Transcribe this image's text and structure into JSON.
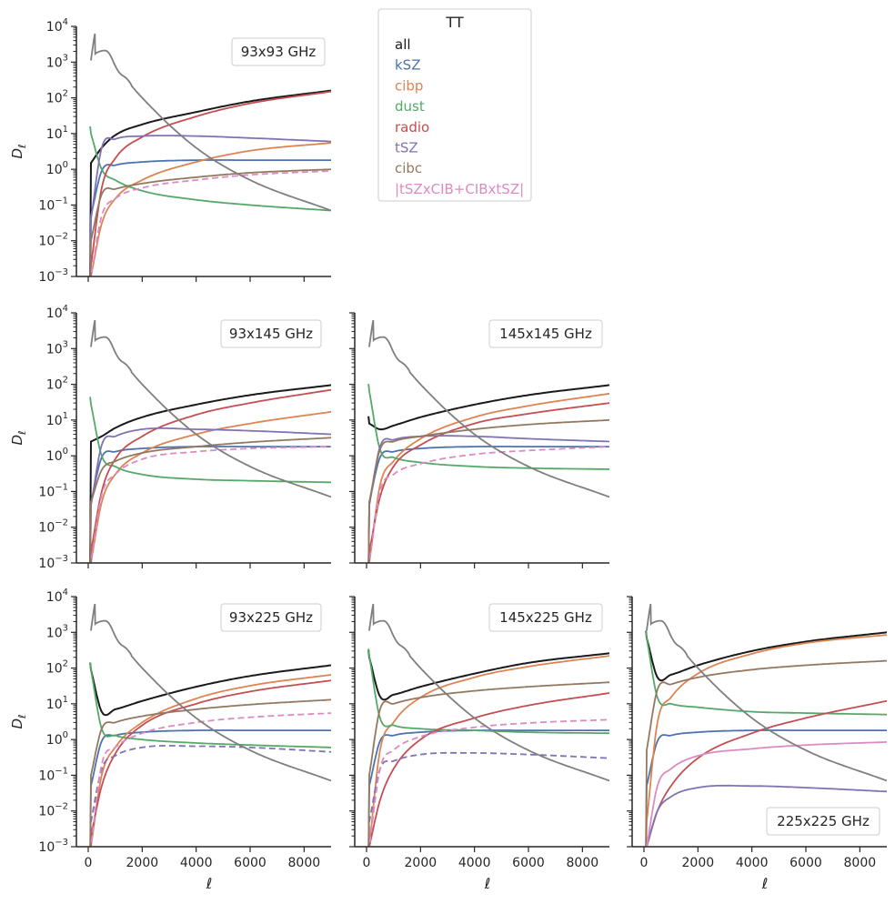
{
  "figure_title": "TT",
  "legend": [
    {
      "label": "all",
      "color": "#1a1a1a"
    },
    {
      "label": "kSZ",
      "color": "#4c72b0"
    },
    {
      "label": "cibp",
      "color": "#dd8452"
    },
    {
      "label": "dust",
      "color": "#55a868"
    },
    {
      "label": "radio",
      "color": "#c44e52"
    },
    {
      "label": "tSZ",
      "color": "#8172b3"
    },
    {
      "label": "cibc",
      "color": "#937860"
    },
    {
      "label": "|tSZxCIB+CIBxtSZ|",
      "color": "#da8bc3"
    }
  ],
  "cmb_color": "#7f7f7f",
  "chart_data": [
    {
      "type": "line",
      "title": "93x93 GHz",
      "ylabel": "D_ℓ",
      "xlabel": "",
      "xlim": [
        0,
        9000
      ],
      "ylim": [
        0.001,
        10000
      ],
      "yscale": "log",
      "legend_placement": "top-right",
      "x": [
        100,
        500,
        1000,
        2000,
        4000,
        6000,
        9000
      ],
      "series": [
        {
          "name": "all",
          "values": [
            1.5,
            4,
            9,
            18,
            40,
            80,
            160
          ]
        },
        {
          "name": "kSZ",
          "values": [
            0.05,
            0.9,
            1.3,
            1.6,
            1.8,
            1.8,
            1.8
          ]
        },
        {
          "name": "cibp",
          "values": [
            0.001,
            0.03,
            0.15,
            0.5,
            1.6,
            3.3,
            5.5
          ]
        },
        {
          "name": "dust",
          "values": [
            10,
            1.0,
            0.5,
            0.25,
            0.14,
            0.1,
            0.07
          ]
        },
        {
          "name": "radio",
          "values": [
            0.002,
            0.3,
            2,
            8,
            30,
            70,
            150
          ]
        },
        {
          "name": "tSZ",
          "values": [
            0.04,
            4,
            7,
            8.5,
            8.5,
            7.5,
            6
          ]
        },
        {
          "name": "cibc",
          "values": [
            0.01,
            0.2,
            0.28,
            0.4,
            0.6,
            0.8,
            1.0
          ]
        },
        {
          "name": "|tSZxCIB+CIBxtSZ|",
          "values": [
            0.001,
            0.05,
            0.15,
            0.3,
            0.5,
            0.7,
            0.9
          ],
          "dashed": true
        },
        {
          "name": "CMB",
          "values": [
            900,
            2500,
            800,
            100,
            4,
            0.5,
            0.07
          ]
        }
      ]
    },
    {
      "type": "line",
      "title": "93x145 GHz",
      "ylabel": "D_ℓ",
      "xlabel": "",
      "xlim": [
        0,
        9000
      ],
      "ylim": [
        0.001,
        10000
      ],
      "yscale": "log",
      "legend_placement": "top-right",
      "x": [
        100,
        500,
        1000,
        2000,
        4000,
        6000,
        9000
      ],
      "series": [
        {
          "name": "all",
          "values": [
            2.5,
            3.5,
            6,
            12,
            27,
            50,
            95
          ]
        },
        {
          "name": "kSZ",
          "values": [
            0.05,
            0.9,
            1.3,
            1.6,
            1.8,
            1.8,
            1.8
          ]
        },
        {
          "name": "cibp",
          "values": [
            0.001,
            0.05,
            0.3,
            1.2,
            4,
            8,
            17
          ]
        },
        {
          "name": "dust",
          "values": [
            28,
            1.0,
            0.5,
            0.3,
            0.22,
            0.2,
            0.18
          ]
        },
        {
          "name": "radio",
          "values": [
            0.002,
            0.1,
            0.8,
            3.5,
            14,
            30,
            70
          ]
        },
        {
          "name": "tSZ",
          "values": [
            0.04,
            2,
            3.5,
            5.5,
            5.5,
            5,
            4
          ]
        },
        {
          "name": "cibc",
          "values": [
            0.05,
            0.4,
            0.7,
            1.2,
            1.8,
            2.4,
            3.2
          ]
        },
        {
          "name": "|tSZxCIB+CIBxtSZ|",
          "values": [
            0.001,
            0.08,
            0.3,
            0.8,
            1.3,
            1.6,
            1.8
          ],
          "dashed": true
        },
        {
          "name": "CMB",
          "values": [
            900,
            2500,
            800,
            100,
            4,
            0.5,
            0.07
          ]
        }
      ]
    },
    {
      "type": "line",
      "title": "145x145 GHz",
      "ylabel": "",
      "xlabel": "",
      "xlim": [
        0,
        9000
      ],
      "ylim": [
        0.001,
        10000
      ],
      "yscale": "log",
      "legend_placement": "top-right",
      "x": [
        100,
        500,
        1000,
        2000,
        4000,
        6000,
        9000
      ],
      "series": [
        {
          "name": "all",
          "values": [
            8,
            5.5,
            7,
            12,
            27,
            50,
            95
          ]
        },
        {
          "name": "kSZ",
          "values": [
            0.05,
            0.9,
            1.3,
            1.6,
            1.8,
            1.8,
            1.8
          ]
        },
        {
          "name": "cibp",
          "values": [
            0.001,
            0.15,
            0.7,
            3,
            12,
            25,
            55
          ]
        },
        {
          "name": "dust",
          "values": [
            65,
            1.5,
            0.9,
            0.65,
            0.5,
            0.45,
            0.42
          ]
        },
        {
          "name": "radio",
          "values": [
            0.002,
            0.07,
            0.5,
            2,
            8,
            15,
            30
          ]
        },
        {
          "name": "tSZ",
          "values": [
            0.04,
            1.8,
            2.8,
            3.5,
            3.5,
            3,
            2.5
          ]
        },
        {
          "name": "cibc",
          "values": [
            0.05,
            1.5,
            2.5,
            3.5,
            5.5,
            7.5,
            10
          ]
        },
        {
          "name": "|tSZxCIB+CIBxtSZ|",
          "values": [
            0.001,
            0.1,
            0.3,
            0.6,
            1.1,
            1.4,
            1.8
          ],
          "dashed": true
        },
        {
          "name": "CMB",
          "values": [
            900,
            2500,
            800,
            100,
            4,
            0.5,
            0.07
          ]
        }
      ]
    },
    {
      "type": "line",
      "title": "93x225 GHz",
      "ylabel": "D_ℓ",
      "xlabel": "ℓ",
      "xlim": [
        0,
        9000
      ],
      "ylim": [
        0.001,
        10000
      ],
      "yscale": "log",
      "legend_placement": "top-right",
      "x": [
        100,
        500,
        1000,
        2000,
        4000,
        6000,
        9000
      ],
      "series": [
        {
          "name": "all",
          "values": [
            90,
            6,
            7,
            12,
            30,
            60,
            120
          ]
        },
        {
          "name": "kSZ",
          "values": [
            0.05,
            0.9,
            1.3,
            1.6,
            1.8,
            1.8,
            1.8
          ]
        },
        {
          "name": "cibp",
          "values": [
            0.001,
            0.1,
            0.6,
            3,
            14,
            32,
            65
          ]
        },
        {
          "name": "dust",
          "values": [
            90,
            2,
            1.3,
            1.0,
            0.8,
            0.7,
            0.6
          ]
        },
        {
          "name": "radio",
          "values": [
            0.002,
            0.05,
            0.4,
            2.5,
            10,
            22,
            45
          ]
        },
        {
          "name": "tSZ",
          "values": [
            0.005,
            0.15,
            0.35,
            0.6,
            0.65,
            0.6,
            0.45
          ],
          "dashed": true
        },
        {
          "name": "cibc",
          "values": [
            0.1,
            2,
            3,
            4.5,
            7,
            9.5,
            13
          ]
        },
        {
          "name": "|tSZxCIB+CIBxtSZ|",
          "values": [
            0.001,
            0.2,
            0.6,
            1.5,
            3,
            4.2,
            5.5
          ],
          "dashed": true
        },
        {
          "name": "CMB",
          "values": [
            900,
            2500,
            800,
            100,
            4,
            0.5,
            0.07
          ]
        }
      ]
    },
    {
      "type": "line",
      "title": "145x225 GHz",
      "ylabel": "",
      "xlabel": "ℓ",
      "xlim": [
        0,
        9000
      ],
      "ylim": [
        0.001,
        10000
      ],
      "yscale": "log",
      "legend_placement": "top-right",
      "x": [
        100,
        500,
        1000,
        2000,
        4000,
        6000,
        9000
      ],
      "series": [
        {
          "name": "all",
          "values": [
            200,
            16,
            18,
            30,
            70,
            140,
            260
          ]
        },
        {
          "name": "kSZ",
          "values": [
            0.05,
            0.9,
            1.3,
            1.6,
            1.8,
            1.8,
            1.8
          ]
        },
        {
          "name": "cibp",
          "values": [
            0.001,
            0.5,
            3,
            15,
            55,
            110,
            220
          ]
        },
        {
          "name": "dust",
          "values": [
            220,
            4,
            2.5,
            2,
            1.8,
            1.6,
            1.5
          ]
        },
        {
          "name": "radio",
          "values": [
            0.001,
            0.02,
            0.15,
            1,
            4,
            9,
            20
          ]
        },
        {
          "name": "tSZ",
          "values": [
            0.005,
            0.15,
            0.25,
            0.38,
            0.42,
            0.38,
            0.3
          ],
          "dashed": true
        },
        {
          "name": "cibc",
          "values": [
            0.1,
            7,
            10,
            15,
            23,
            30,
            40
          ]
        },
        {
          "name": "|tSZxCIB+CIBxtSZ|",
          "values": [
            0.001,
            0.15,
            0.5,
            1.2,
            2.2,
            2.9,
            3.6
          ],
          "dashed": true
        },
        {
          "name": "CMB",
          "values": [
            900,
            2500,
            800,
            100,
            4,
            0.5,
            0.07
          ]
        }
      ]
    },
    {
      "type": "line",
      "title": "225x225 GHz",
      "ylabel": "",
      "xlabel": "ℓ",
      "xlim": [
        0,
        9000
      ],
      "ylim": [
        0.001,
        10000
      ],
      "yscale": "log",
      "legend_placement": "bottom-right",
      "x": [
        100,
        500,
        1000,
        2000,
        4000,
        6000,
        9000
      ],
      "series": [
        {
          "name": "all",
          "values": [
            700,
            55,
            65,
            120,
            300,
            550,
            1000
          ]
        },
        {
          "name": "kSZ",
          "values": [
            0.05,
            0.9,
            1.3,
            1.6,
            1.8,
            1.8,
            1.8
          ]
        },
        {
          "name": "cibp",
          "values": [
            0.005,
            3,
            15,
            70,
            250,
            500,
            850
          ]
        },
        {
          "name": "dust",
          "values": [
            700,
            15,
            10,
            8,
            6,
            5.5,
            5
          ]
        },
        {
          "name": "radio",
          "values": [
            0.001,
            0.01,
            0.05,
            0.3,
            1.5,
            4,
            12
          ]
        },
        {
          "name": "tSZ",
          "values": [
            0.001,
            0.01,
            0.025,
            0.045,
            0.05,
            0.045,
            0.035
          ]
        },
        {
          "name": "cibc",
          "values": [
            0.5,
            25,
            35,
            55,
            90,
            120,
            160
          ]
        },
        {
          "name": "|tSZxCIB+CIBxtSZ|",
          "values": [
            0.001,
            0.05,
            0.15,
            0.35,
            0.55,
            0.7,
            0.85
          ]
        },
        {
          "name": "CMB",
          "values": [
            900,
            2500,
            800,
            100,
            4,
            0.5,
            0.07
          ]
        }
      ]
    }
  ]
}
